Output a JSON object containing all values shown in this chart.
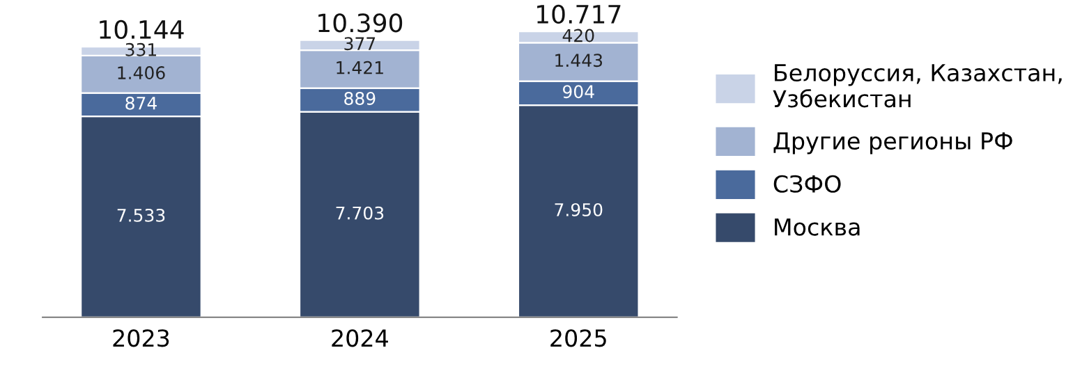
{
  "chart_data": {
    "type": "bar",
    "stacked": true,
    "categories": [
      "2023",
      "2024",
      "2025"
    ],
    "series": [
      {
        "name": "Москва",
        "color": "#364a6b",
        "values": [
          7533,
          7703,
          7950
        ],
        "value_labels": [
          "7.533",
          "7.703",
          "7.950"
        ]
      },
      {
        "name": "СЗФО",
        "color": "#4a6a9c",
        "values": [
          874,
          889,
          904
        ],
        "value_labels": [
          "874",
          "889",
          "904"
        ]
      },
      {
        "name": "Другие регионы РФ",
        "color": "#a2b3d2",
        "values": [
          1406,
          1421,
          1443
        ],
        "value_labels": [
          "1.406",
          "1.421",
          "1.443"
        ]
      },
      {
        "name": "Белоруссия, Казахстан, Узбекистан",
        "color": "#c9d3e7",
        "values": [
          331,
          377,
          420
        ],
        "value_labels": [
          "331",
          "377",
          "420"
        ]
      }
    ],
    "totals": [
      "10.144",
      "10.390",
      "10.717"
    ],
    "legend": "right",
    "grid": false
  }
}
